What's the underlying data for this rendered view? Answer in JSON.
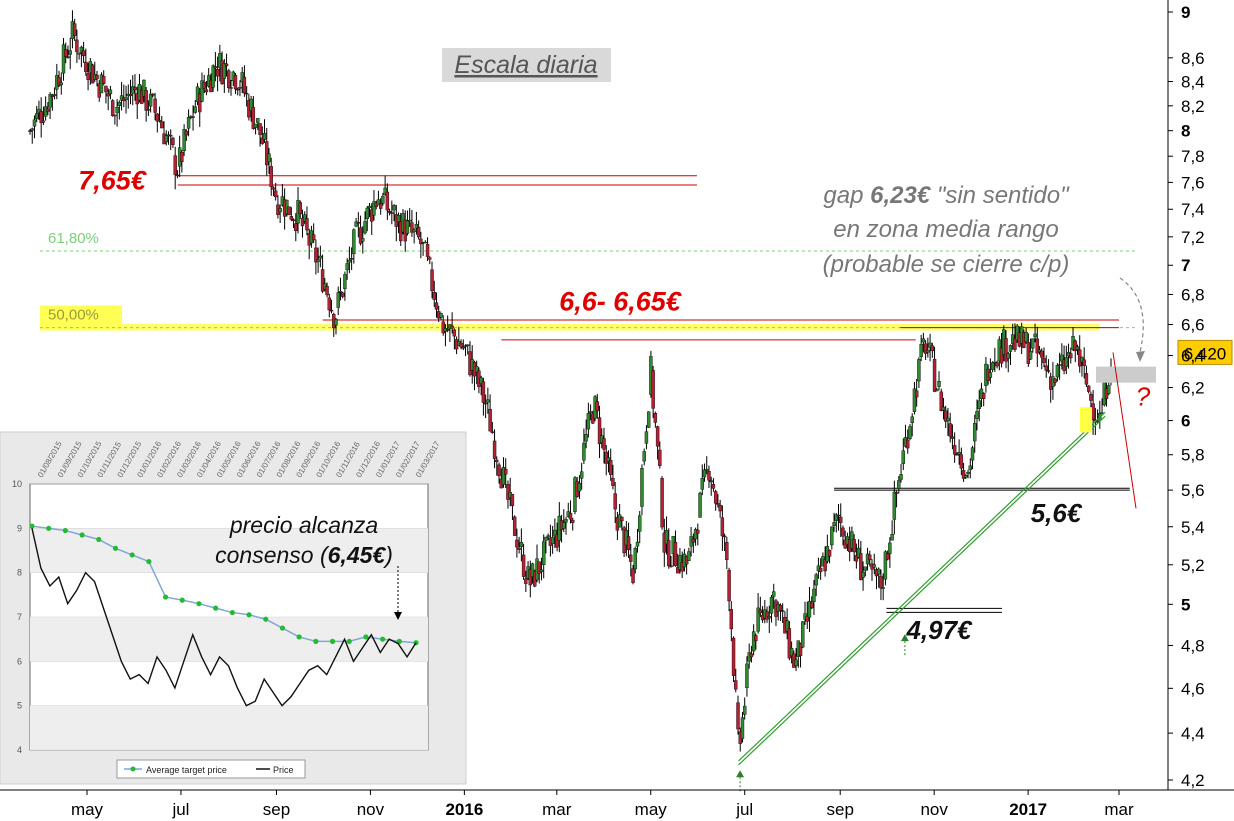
{
  "chart_data": [
    {
      "type": "line",
      "subtype": "candlestick",
      "title": "Escala diaria",
      "y_axis_position": "right",
      "y_scale": "log",
      "ylim": [
        4.15,
        9.05
      ],
      "y_ticks": [
        "9",
        "8,6",
        "8,4",
        "8,2",
        "8",
        "7,8",
        "7,6",
        "7,4",
        "7,2",
        "7",
        "6,8",
        "6,6",
        "6,4",
        "6,2",
        "6",
        "5,8",
        "5,6",
        "5,4",
        "5,2",
        "5",
        "4,8",
        "4,6",
        "4,4",
        "4,2"
      ],
      "y_tick_values": [
        9,
        8.6,
        8.4,
        8.2,
        8,
        7.8,
        7.6,
        7.4,
        7.2,
        7,
        6.8,
        6.6,
        6.4,
        6.2,
        6,
        5.8,
        5.6,
        5.4,
        5.2,
        5,
        4.8,
        4.6,
        4.4,
        4.2
      ],
      "y_ticks_bold": [
        "9",
        "8",
        "7",
        "6",
        "5"
      ],
      "x_ticks": [
        "may",
        "jul",
        "sep",
        "nov",
        "2016",
        "mar",
        "may",
        "jul",
        "sep",
        "nov",
        "2017",
        "mar"
      ],
      "x_ticks_bold": [
        "2016",
        "2017"
      ],
      "x_tick_dates": [
        "2015-05-01",
        "2015-07-01",
        "2015-09-01",
        "2015-11-01",
        "2016-01-01",
        "2016-03-01",
        "2016-05-01",
        "2016-07-01",
        "2016-09-01",
        "2016-11-01",
        "2017-01-01",
        "2017-03-01"
      ],
      "xlim": [
        "2015-03-25",
        "2017-03-28"
      ],
      "grid": false,
      "colors": {
        "up": "#2e8b2e",
        "down": "#b22234",
        "wick": "#000000",
        "resistance": "#cc0000",
        "support": "#000000",
        "trendline": "#2e9e2e",
        "fib": "#7ccf7c",
        "fib_highlight": "#ffff55",
        "current_price_box": "#ffcc00"
      },
      "price_path": [
        {
          "date": "2015-03-25",
          "price": 8.0
        },
        {
          "date": "2015-04-08",
          "price": 8.3
        },
        {
          "date": "2015-04-22",
          "price": 8.8
        },
        {
          "date": "2015-05-06",
          "price": 8.45
        },
        {
          "date": "2015-05-20",
          "price": 8.2
        },
        {
          "date": "2015-06-03",
          "price": 8.35
        },
        {
          "date": "2015-06-17",
          "price": 8.1
        },
        {
          "date": "2015-06-29",
          "price": 7.7
        },
        {
          "date": "2015-07-10",
          "price": 8.2
        },
        {
          "date": "2015-07-24",
          "price": 8.55
        },
        {
          "date": "2015-08-07",
          "price": 8.45
        },
        {
          "date": "2015-08-21",
          "price": 8.0
        },
        {
          "date": "2015-09-01",
          "price": 7.5
        },
        {
          "date": "2015-09-15",
          "price": 7.35
        },
        {
          "date": "2015-09-29",
          "price": 7.0
        },
        {
          "date": "2015-10-09",
          "price": 6.65
        },
        {
          "date": "2015-10-23",
          "price": 7.2
        },
        {
          "date": "2015-11-06",
          "price": 7.5
        },
        {
          "date": "2015-11-20",
          "price": 7.3
        },
        {
          "date": "2015-12-04",
          "price": 7.15
        },
        {
          "date": "2015-12-18",
          "price": 6.6
        },
        {
          "date": "2016-01-01",
          "price": 6.45
        },
        {
          "date": "2016-01-15",
          "price": 6.1
        },
        {
          "date": "2016-01-29",
          "price": 5.55
        },
        {
          "date": "2016-02-12",
          "price": 5.1
        },
        {
          "date": "2016-02-26",
          "price": 5.3
        },
        {
          "date": "2016-03-11",
          "price": 5.5
        },
        {
          "date": "2016-03-25",
          "price": 6.1
        },
        {
          "date": "2016-04-08",
          "price": 5.5
        },
        {
          "date": "2016-04-20",
          "price": 5.15
        },
        {
          "date": "2016-05-01",
          "price": 6.3
        },
        {
          "date": "2016-05-10",
          "price": 5.3
        },
        {
          "date": "2016-05-25",
          "price": 5.2
        },
        {
          "date": "2016-06-08",
          "price": 5.75
        },
        {
          "date": "2016-06-20",
          "price": 5.2
        },
        {
          "date": "2016-06-27",
          "price": 4.3
        },
        {
          "date": "2016-07-06",
          "price": 4.85
        },
        {
          "date": "2016-07-20",
          "price": 5.05
        },
        {
          "date": "2016-08-03",
          "price": 4.7
        },
        {
          "date": "2016-08-17",
          "price": 5.1
        },
        {
          "date": "2016-08-31",
          "price": 5.45
        },
        {
          "date": "2016-09-14",
          "price": 5.2
        },
        {
          "date": "2016-09-28",
          "price": 5.1
        },
        {
          "date": "2016-10-12",
          "price": 5.8
        },
        {
          "date": "2016-10-26",
          "price": 6.5
        },
        {
          "date": "2016-11-09",
          "price": 6.0
        },
        {
          "date": "2016-11-23",
          "price": 5.7
        },
        {
          "date": "2016-12-07",
          "price": 6.4
        },
        {
          "date": "2016-12-21",
          "price": 6.5
        },
        {
          "date": "2017-01-04",
          "price": 6.45
        },
        {
          "date": "2017-01-18",
          "price": 6.25
        },
        {
          "date": "2017-02-01",
          "price": 6.45
        },
        {
          "date": "2017-02-10",
          "price": 6.15
        },
        {
          "date": "2017-02-17",
          "price": 6.0
        },
        {
          "date": "2017-02-24",
          "price": 6.42
        }
      ],
      "last_price": 6.42,
      "last_price_label": "6,420",
      "horizontal_lines": [
        {
          "name": "resistance-7.65-a",
          "value": 7.65,
          "from": "2015-06-29",
          "to": "2016-05-31",
          "color": "resistance"
        },
        {
          "name": "resistance-7.65-b",
          "value": 7.58,
          "from": "2015-06-29",
          "to": "2016-05-31",
          "color": "resistance"
        },
        {
          "name": "resistance-6.65",
          "value": 6.63,
          "from": "2015-10-01",
          "to": "2017-03-01",
          "color": "resistance"
        },
        {
          "name": "resistance-6.60-right",
          "value": 6.58,
          "from": "2016-10-10",
          "to": "2017-03-01",
          "color": "resistance"
        },
        {
          "name": "resistance-6.5-left",
          "value": 6.5,
          "from": "2016-01-25",
          "to": "2016-10-20",
          "color": "resistance"
        },
        {
          "name": "support-5.6-a",
          "value": 5.61,
          "from": "2016-08-28",
          "to": "2017-03-08",
          "color": "support"
        },
        {
          "name": "support-5.6-b",
          "value": 5.6,
          "from": "2016-08-28",
          "to": "2017-03-08",
          "color": "support"
        },
        {
          "name": "support-4.97-a",
          "value": 4.98,
          "from": "2016-10-01",
          "to": "2016-12-15",
          "color": "support"
        },
        {
          "name": "support-4.97-b",
          "value": 4.96,
          "from": "2016-10-01",
          "to": "2016-12-15",
          "color": "support"
        }
      ],
      "fib_levels": [
        {
          "label": "61,80%",
          "value": 7.1
        },
        {
          "label": "50,00%",
          "value": 6.58
        }
      ],
      "trendline": {
        "from": {
          "date": "2016-06-27",
          "price": 4.28
        },
        "to": {
          "date": "2017-02-20",
          "price": 6.05
        }
      },
      "annotations": [
        {
          "text": "7,65€",
          "style": "red-bold"
        },
        {
          "text": "6,6- 6,65€",
          "style": "red-bold"
        },
        {
          "text": "5,6€",
          "style": "black-bold"
        },
        {
          "text": "4,97€",
          "style": "black-bold"
        },
        {
          "text": "?",
          "style": "red-italic"
        }
      ],
      "gap_note": {
        "line1_pre": "gap ",
        "line1_bold": "6,23€",
        "line1_post": " \"sin sentido\"",
        "line2": "en zona media rango",
        "line3": "(probable se cierre c/p)"
      },
      "gap_zone": {
        "from_price": 6.23,
        "to_price": 6.33
      }
    },
    {
      "type": "line",
      "xlim_labels": [
        "01/08/2015",
        "01/09/2015",
        "01/10/2015",
        "01/11/2015",
        "01/12/2015",
        "01/01/2016",
        "01/02/2016",
        "01/03/2016",
        "01/04/2016",
        "01/05/2016",
        "01/06/2016",
        "01/07/2016",
        "01/08/2016",
        "01/09/2016",
        "01/10/2016",
        "01/11/2016",
        "01/12/2016",
        "01/01/2017",
        "01/02/2017",
        "01/03/2017"
      ],
      "ylim": [
        4,
        10
      ],
      "y_ticks": [
        "10",
        "9",
        "8",
        "7",
        "6",
        "5",
        "4"
      ],
      "legend": "bottom",
      "grid": true,
      "series": [
        {
          "name": "Average target price",
          "marker": "dot",
          "color": "#7fa7d8",
          "marker_color": "#22bb33",
          "values": [
            9.05,
            9.0,
            8.95,
            8.85,
            8.75,
            8.55,
            8.4,
            8.25,
            7.45,
            7.38,
            7.3,
            7.2,
            7.1,
            7.05,
            6.95,
            6.75,
            6.55,
            6.45,
            6.45,
            6.45,
            6.55,
            6.5,
            6.45,
            6.42
          ]
        },
        {
          "name": "Price",
          "color": "#111111",
          "values": [
            9.0,
            8.1,
            7.7,
            7.9,
            7.3,
            7.6,
            8.0,
            7.8,
            7.2,
            6.6,
            6.0,
            5.6,
            5.7,
            5.5,
            6.1,
            5.8,
            5.4,
            6.0,
            6.6,
            6.1,
            5.7,
            6.1,
            5.9,
            5.4,
            5.0,
            5.1,
            5.6,
            5.3,
            5.0,
            5.2,
            5.5,
            5.8,
            5.9,
            5.7,
            6.1,
            6.5,
            6.0,
            6.3,
            6.6,
            6.2,
            6.5,
            6.4,
            6.1,
            6.42
          ]
        }
      ],
      "annotation": {
        "line1": "precio alcanza",
        "line2_pre": "consenso (",
        "line2_bold": "6,45€",
        "line2_post": ")"
      }
    }
  ]
}
